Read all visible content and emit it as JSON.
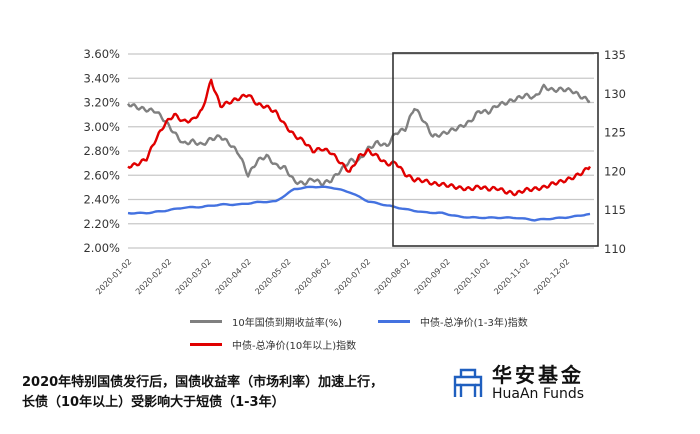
{
  "chart_data": {
    "type": "line",
    "title": "",
    "xlabel": "",
    "ylabel_left": "",
    "ylabel_right": "",
    "x_ticks": [
      "2020-01-02",
      "2020-02-02",
      "2020-03-02",
      "2020-04-02",
      "2020-05-02",
      "2020-06-02",
      "2020-07-02",
      "2020-08-02",
      "2020-09-02",
      "2020-10-02",
      "2020-11-02",
      "2020-12-02"
    ],
    "y_left": {
      "ticks": [
        "3.60%",
        "3.40%",
        "3.20%",
        "3.00%",
        "2.80%",
        "2.60%",
        "2.40%",
        "2.20%",
        "2.00%"
      ],
      "range": [
        2.0,
        3.6
      ]
    },
    "y_right": {
      "ticks": [
        "135",
        "130",
        "125",
        "120",
        "115",
        "110"
      ],
      "range": [
        110,
        135
      ]
    },
    "grid": true,
    "legend_position": "bottom",
    "highlight_box": {
      "from": "2020-07-27",
      "to": "2020-12-31"
    },
    "series": [
      {
        "name": "10年国债到期收益率(%)",
        "axis": "left",
        "color": "#808080",
        "x": [
          0,
          0.02,
          0.04,
          0.06,
          0.08,
          0.1,
          0.12,
          0.14,
          0.16,
          0.18,
          0.2,
          0.22,
          0.24,
          0.26,
          0.28,
          0.3,
          0.32,
          0.34,
          0.36,
          0.38,
          0.4,
          0.42,
          0.44,
          0.46,
          0.48,
          0.5,
          0.52,
          0.54,
          0.56,
          0.58,
          0.6,
          0.62,
          0.64,
          0.66,
          0.68,
          0.7,
          0.72,
          0.74,
          0.76,
          0.78,
          0.8,
          0.82,
          0.84,
          0.86,
          0.88,
          0.9,
          0.92,
          0.94,
          0.96,
          0.98,
          1.0
        ],
        "values": [
          3.19,
          3.16,
          3.14,
          3.13,
          3.05,
          2.95,
          2.86,
          2.88,
          2.85,
          2.9,
          2.92,
          2.86,
          2.78,
          2.6,
          2.72,
          2.76,
          2.68,
          2.66,
          2.55,
          2.53,
          2.57,
          2.53,
          2.56,
          2.64,
          2.72,
          2.72,
          2.82,
          2.87,
          2.84,
          2.95,
          2.98,
          3.16,
          3.05,
          2.92,
          2.94,
          2.97,
          3.0,
          3.04,
          3.13,
          3.12,
          3.18,
          3.2,
          3.23,
          3.26,
          3.24,
          3.33,
          3.3,
          3.31,
          3.3,
          3.25,
          3.21
        ]
      },
      {
        "name": "中债-总净价(1-3年)指数",
        "axis": "right",
        "color": "#4472e0",
        "x": [
          0,
          0.04,
          0.08,
          0.12,
          0.16,
          0.2,
          0.24,
          0.28,
          0.32,
          0.36,
          0.4,
          0.44,
          0.48,
          0.52,
          0.56,
          0.6,
          0.64,
          0.68,
          0.72,
          0.76,
          0.8,
          0.84,
          0.88,
          0.92,
          0.96,
          1.0
        ],
        "values": [
          114.5,
          114.5,
          114.8,
          115.2,
          115.3,
          115.6,
          115.6,
          115.9,
          116.0,
          117.6,
          117.9,
          117.8,
          117.2,
          116.0,
          115.5,
          115.0,
          114.6,
          114.5,
          114.0,
          113.9,
          113.9,
          113.9,
          113.6,
          113.8,
          114.0,
          114.4
        ]
      },
      {
        "name": "中债-总净价(10年以上)指数",
        "axis": "right",
        "color": "#e00000",
        "x": [
          0,
          0.02,
          0.04,
          0.06,
          0.08,
          0.1,
          0.12,
          0.14,
          0.16,
          0.18,
          0.2,
          0.22,
          0.24,
          0.26,
          0.28,
          0.3,
          0.32,
          0.34,
          0.36,
          0.38,
          0.4,
          0.42,
          0.44,
          0.46,
          0.48,
          0.5,
          0.52,
          0.54,
          0.56,
          0.58,
          0.6,
          0.62,
          0.64,
          0.66,
          0.68,
          0.7,
          0.72,
          0.74,
          0.76,
          0.78,
          0.8,
          0.82,
          0.84,
          0.86,
          0.88,
          0.9,
          0.92,
          0.94,
          0.96,
          0.98,
          1.0
        ],
        "values": [
          120.5,
          120.8,
          121.5,
          124,
          126,
          127.2,
          126.3,
          126.5,
          127.7,
          131.6,
          128.3,
          128.8,
          129.3,
          129.8,
          128.5,
          128.2,
          127.5,
          125.8,
          124.5,
          123.8,
          122.5,
          122.8,
          122.3,
          121,
          119.8,
          121.8,
          122.5,
          121.8,
          120.8,
          121,
          119.5,
          118.8,
          118.7,
          118.3,
          118.2,
          118.0,
          117.7,
          117.6,
          117.9,
          117.6,
          117.7,
          117.2,
          117.0,
          117.5,
          117.6,
          117.8,
          118.3,
          118.6,
          119.0,
          119.6,
          120.5
        ]
      }
    ]
  },
  "legend": {
    "items": [
      {
        "label": "10年国债到期收益率(%)",
        "color": "#808080"
      },
      {
        "label": "中债-总净价(1-3年)指数",
        "color": "#4472e0"
      },
      {
        "label": "中债-总净价(10年以上)指数",
        "color": "#e00000"
      }
    ]
  },
  "caption": {
    "line1": "2020年特别国债发行后，国债收益率（市场利率）加速上行，",
    "line2": "长债（10年以上）受影响大于短债（1-3年）"
  },
  "logo": {
    "cn": "华安基金",
    "en": "HuaAn Funds",
    "color": "#1f5fbf"
  }
}
